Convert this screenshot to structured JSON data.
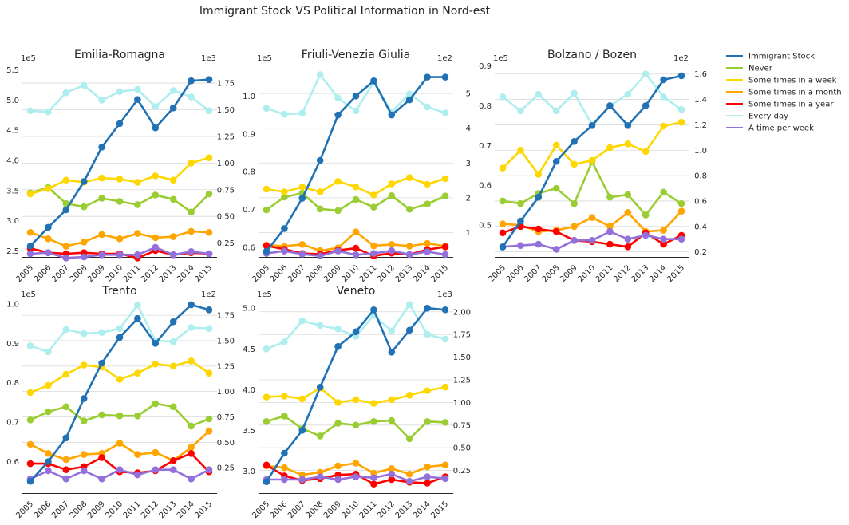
{
  "figure": {
    "title": "Immigrant Stock VS Political Information in Nord-est"
  },
  "colors": {
    "Immigrant Stock": "#2171b5",
    "Never": "#9acd32",
    "Some times in a week": "#ffd700",
    "Some times in a month": "#ffa500",
    "Some times in a year": "#ff0000",
    "Every day": "#afeeee",
    "A time per week": "#9370db"
  },
  "legend": {
    "position": "right",
    "items": [
      "Immigrant Stock",
      "Never",
      "Some times in a week",
      "Some times in a month",
      "Some times in a year",
      "Every day",
      "A time per week"
    ]
  },
  "chart_data": [
    {
      "type": "line",
      "title": "Emilia-Romagna",
      "x": [
        2005,
        2006,
        2007,
        2008,
        2009,
        2010,
        2011,
        2012,
        2013,
        2014,
        2015
      ],
      "left_axis": {
        "ticks": [
          2.5,
          3.0,
          3.5,
          4.0,
          4.5,
          5.0,
          5.5
        ],
        "ylim": [
          2.4,
          5.6
        ],
        "tick_labels": [
          "2.5",
          "3.0",
          "3.5",
          "4.0",
          "4.5",
          "5.0",
          "5.5"
        ],
        "multiplier": "1e5"
      },
      "right_axis": {
        "ticks": [
          0.25,
          0.5,
          0.75,
          1.0,
          1.25,
          1.5,
          1.75
        ],
        "ylim": [
          0.12,
          1.93
        ],
        "tick_labels": [
          "0.25",
          "0.50",
          "0.75",
          "1.00",
          "1.25",
          "1.50",
          "1.75"
        ],
        "multiplier": "1e3"
      },
      "series": [
        {
          "name": "Immigrant Stock",
          "axis": "left",
          "values": [
            2.58,
            2.89,
            3.18,
            3.65,
            4.22,
            4.61,
            5.01,
            4.54,
            4.87,
            5.32,
            5.34
          ]
        },
        {
          "name": "Never",
          "axis": "right",
          "values": [
            0.72,
            0.77,
            0.62,
            0.59,
            0.67,
            0.64,
            0.61,
            0.7,
            0.66,
            0.54,
            0.71
          ]
        },
        {
          "name": "Some times in a week",
          "axis": "right",
          "values": [
            0.71,
            0.76,
            0.84,
            0.82,
            0.86,
            0.85,
            0.82,
            0.88,
            0.84,
            1.0,
            1.05
          ]
        },
        {
          "name": "Some times in a month",
          "axis": "right",
          "values": [
            0.35,
            0.29,
            0.22,
            0.26,
            0.33,
            0.29,
            0.34,
            0.3,
            0.31,
            0.36,
            0.35
          ]
        },
        {
          "name": "Some times in a year",
          "axis": "right",
          "values": [
            0.2,
            0.16,
            0.15,
            0.16,
            0.15,
            0.15,
            0.11,
            0.18,
            0.14,
            0.16,
            0.15
          ]
        },
        {
          "name": "Every day",
          "axis": "right",
          "values": [
            1.49,
            1.48,
            1.66,
            1.73,
            1.59,
            1.67,
            1.69,
            1.53,
            1.68,
            1.62,
            1.49
          ]
        },
        {
          "name": "A time per week",
          "axis": "right",
          "values": [
            0.15,
            0.16,
            0.11,
            0.12,
            0.14,
            0.14,
            0.14,
            0.21,
            0.14,
            0.17,
            0.15
          ]
        }
      ]
    },
    {
      "type": "line",
      "title": "Friuli-Venezia Giulia",
      "x": [
        2005,
        2006,
        2007,
        2008,
        2009,
        2010,
        2011,
        2012,
        2013,
        2014,
        2015
      ],
      "left_axis": {
        "ticks": [
          0.6,
          0.7,
          0.8,
          0.9,
          1.0
        ],
        "ylim": [
          0.575,
          1.085
        ],
        "tick_labels": [
          "0.6",
          "0.7",
          "0.8",
          "0.9",
          "1.0"
        ],
        "multiplier": "1e5"
      },
      "right_axis": {
        "ticks": [
          1,
          2,
          3,
          4,
          5
        ],
        "ylim": [
          0.3,
          5.85
        ],
        "tick_labels": [
          "1",
          "2",
          "3",
          "4",
          "5"
        ],
        "multiplier": "1e2"
      },
      "series": [
        {
          "name": "Immigrant Stock",
          "axis": "left",
          "values": [
            0.59,
            0.65,
            0.73,
            0.83,
            0.95,
            1.0,
            1.04,
            0.95,
            0.99,
            1.05,
            1.05
          ]
        },
        {
          "name": "Never",
          "axis": "right",
          "values": [
            1.65,
            2.02,
            2.13,
            1.68,
            1.63,
            1.95,
            1.73,
            2.06,
            1.67,
            1.82,
            2.05
          ]
        },
        {
          "name": "Some times in a week",
          "axis": "right",
          "values": [
            2.25,
            2.17,
            2.31,
            2.17,
            2.47,
            2.31,
            2.08,
            2.4,
            2.58,
            2.39,
            2.55
          ]
        },
        {
          "name": "Some times in a month",
          "axis": "right",
          "values": [
            0.64,
            0.61,
            0.66,
            0.48,
            0.56,
            1.02,
            0.62,
            0.66,
            0.61,
            0.69,
            0.61
          ]
        },
        {
          "name": "Some times in a year",
          "axis": "right",
          "values": [
            0.62,
            0.52,
            0.4,
            0.38,
            0.49,
            0.55,
            0.33,
            0.41,
            0.37,
            0.51,
            0.59
          ]
        },
        {
          "name": "Every day",
          "axis": "right",
          "values": [
            4.57,
            4.4,
            4.43,
            5.54,
            4.87,
            4.5,
            5.33,
            4.47,
            4.99,
            4.61,
            4.44
          ]
        },
        {
          "name": "A time per week",
          "axis": "right",
          "values": [
            0.4,
            0.47,
            0.38,
            0.33,
            0.47,
            0.36,
            0.4,
            0.48,
            0.37,
            0.45,
            0.37
          ]
        }
      ]
    },
    {
      "type": "line",
      "title": "Bolzano / Bozen",
      "x": [
        2005,
        2006,
        2007,
        2008,
        2009,
        2010,
        2011,
        2012,
        2013,
        2014,
        2015
      ],
      "left_axis": {
        "ticks": [
          0.5,
          0.6,
          0.7,
          0.8,
          0.9
        ],
        "ylim": [
          0.42,
          0.905
        ],
        "tick_labels": [
          "0.5",
          "0.6",
          "0.7",
          "0.8",
          "0.9"
        ],
        "multiplier": "1e5"
      },
      "right_axis": {
        "ticks": [
          0.2,
          0.4,
          0.6,
          0.8,
          1.0,
          1.2,
          1.4,
          1.6
        ],
        "ylim": [
          0.16,
          1.68
        ],
        "tick_labels": [
          "0.2",
          "0.4",
          "0.6",
          "0.8",
          "1.0",
          "1.2",
          "1.4",
          "1.6"
        ],
        "multiplier": "1e2"
      },
      "series": [
        {
          "name": "Immigrant Stock",
          "axis": "left",
          "values": [
            0.445,
            0.51,
            0.57,
            0.66,
            0.71,
            0.75,
            0.8,
            0.75,
            0.8,
            0.865,
            0.875
          ]
        },
        {
          "name": "Never",
          "axis": "right",
          "values": [
            0.6,
            0.58,
            0.66,
            0.7,
            0.58,
            0.91,
            0.63,
            0.65,
            0.49,
            0.67,
            0.58
          ]
        },
        {
          "name": "Some times in a week",
          "axis": "right",
          "values": [
            0.86,
            1.0,
            0.81,
            1.04,
            0.89,
            0.92,
            1.02,
            1.05,
            0.99,
            1.19,
            1.22
          ]
        },
        {
          "name": "Some times in a month",
          "axis": "right",
          "values": [
            0.42,
            0.41,
            0.36,
            0.37,
            0.4,
            0.47,
            0.4,
            0.51,
            0.36,
            0.37,
            0.52
          ]
        },
        {
          "name": "Some times in a year",
          "axis": "right",
          "values": [
            0.35,
            0.4,
            0.38,
            0.36,
            0.29,
            0.28,
            0.26,
            0.24,
            0.35,
            0.26,
            0.33
          ]
        },
        {
          "name": "Every day",
          "axis": "right",
          "values": [
            1.42,
            1.31,
            1.44,
            1.31,
            1.45,
            1.2,
            1.35,
            1.44,
            1.6,
            1.42,
            1.32
          ]
        },
        {
          "name": "A time per week",
          "axis": "right",
          "values": [
            0.24,
            0.25,
            0.26,
            0.22,
            0.29,
            0.29,
            0.36,
            0.3,
            0.33,
            0.3,
            0.3
          ]
        }
      ]
    },
    {
      "type": "line",
      "title": "Trento",
      "x": [
        2005,
        2006,
        2007,
        2008,
        2009,
        2010,
        2011,
        2012,
        2013,
        2014,
        2015
      ],
      "left_axis": {
        "ticks": [
          0.6,
          0.7,
          0.8,
          0.9,
          1.0
        ],
        "ylim": [
          0.52,
          1.01
        ],
        "tick_labels": [
          "0.6",
          "0.7",
          "0.8",
          "0.9",
          "1.0"
        ],
        "multiplier": "1e5"
      },
      "right_axis": {
        "ticks": [
          0.25,
          0.5,
          0.75,
          1.0,
          1.25,
          1.5,
          1.75
        ],
        "ylim": [
          0.0,
          1.9
        ],
        "tick_labels": [
          "0.25",
          "0.50",
          "0.75",
          "1.00",
          "1.25",
          "1.50",
          "1.75"
        ],
        "multiplier": "1e2"
      },
      "series": [
        {
          "name": "Immigrant Stock",
          "axis": "left",
          "values": [
            0.55,
            0.6,
            0.66,
            0.76,
            0.85,
            0.915,
            0.963,
            0.9,
            0.955,
            0.998,
            0.985
          ]
        },
        {
          "name": "Never",
          "axis": "right",
          "values": [
            0.72,
            0.8,
            0.85,
            0.71,
            0.77,
            0.76,
            0.76,
            0.88,
            0.85,
            0.66,
            0.73
          ]
        },
        {
          "name": "Some times in a week",
          "axis": "right",
          "values": [
            0.99,
            1.06,
            1.17,
            1.26,
            1.24,
            1.12,
            1.18,
            1.27,
            1.25,
            1.3,
            1.18
          ]
        },
        {
          "name": "Some times in a month",
          "axis": "right",
          "values": [
            0.48,
            0.39,
            0.33,
            0.38,
            0.39,
            0.49,
            0.38,
            0.4,
            0.32,
            0.45,
            0.61
          ]
        },
        {
          "name": "Some times in a year",
          "axis": "right",
          "values": [
            0.29,
            0.29,
            0.23,
            0.26,
            0.35,
            0.21,
            0.2,
            0.22,
            0.32,
            0.39,
            0.21
          ]
        },
        {
          "name": "Every day",
          "axis": "right",
          "values": [
            1.45,
            1.39,
            1.61,
            1.57,
            1.58,
            1.62,
            1.85,
            1.5,
            1.49,
            1.63,
            1.62
          ]
        },
        {
          "name": "A time per week",
          "axis": "right",
          "values": [
            0.14,
            0.22,
            0.14,
            0.22,
            0.14,
            0.23,
            0.18,
            0.23,
            0.23,
            0.14,
            0.23
          ]
        }
      ]
    },
    {
      "type": "line",
      "title": "Veneto",
      "x": [
        2005,
        2006,
        2007,
        2008,
        2009,
        2010,
        2011,
        2012,
        2013,
        2014,
        2015
      ],
      "left_axis": {
        "ticks": [
          3.0,
          3.5,
          4.0,
          4.5,
          5.0
        ],
        "ylim": [
          2.73,
          5.1
        ],
        "tick_labels": [
          "3.0",
          "3.5",
          "4.0",
          "4.5",
          "5.0"
        ],
        "multiplier": "1e5"
      },
      "right_axis": {
        "ticks": [
          0.25,
          0.5,
          0.75,
          1.0,
          1.25,
          1.5,
          1.75,
          2.0
        ],
        "ylim": [
          0.0,
          2.13
        ],
        "tick_labels": [
          "0.25",
          "0.50",
          "0.75",
          "1.00",
          "1.25",
          "1.50",
          "1.75",
          "2.00"
        ],
        "multiplier": "1e3"
      },
      "series": [
        {
          "name": "Immigrant Stock",
          "axis": "left",
          "values": [
            2.87,
            3.22,
            3.5,
            4.03,
            4.53,
            4.71,
            4.98,
            4.46,
            4.73,
            5.0,
            4.98
          ]
        },
        {
          "name": "Never",
          "axis": "right",
          "values": [
            0.79,
            0.85,
            0.71,
            0.63,
            0.77,
            0.75,
            0.79,
            0.8,
            0.6,
            0.79,
            0.78
          ]
        },
        {
          "name": "Some times in a week",
          "axis": "right",
          "values": [
            1.06,
            1.07,
            1.04,
            1.16,
            1.0,
            1.03,
            0.99,
            1.03,
            1.08,
            1.13,
            1.17
          ]
        },
        {
          "name": "Some times in a month",
          "axis": "right",
          "values": [
            0.3,
            0.28,
            0.2,
            0.23,
            0.3,
            0.33,
            0.22,
            0.27,
            0.21,
            0.29,
            0.31
          ]
        },
        {
          "name": "Some times in a year",
          "axis": "right",
          "values": [
            0.31,
            0.19,
            0.14,
            0.16,
            0.2,
            0.21,
            0.1,
            0.15,
            0.12,
            0.11,
            0.18
          ]
        },
        {
          "name": "Every day",
          "axis": "right",
          "values": [
            1.59,
            1.67,
            1.9,
            1.85,
            1.81,
            1.73,
            1.96,
            1.79,
            2.08,
            1.75,
            1.7
          ]
        },
        {
          "name": "A time per week",
          "axis": "right",
          "values": [
            0.15,
            0.15,
            0.15,
            0.18,
            0.15,
            0.18,
            0.17,
            0.21,
            0.13,
            0.18,
            0.16
          ]
        }
      ]
    }
  ]
}
